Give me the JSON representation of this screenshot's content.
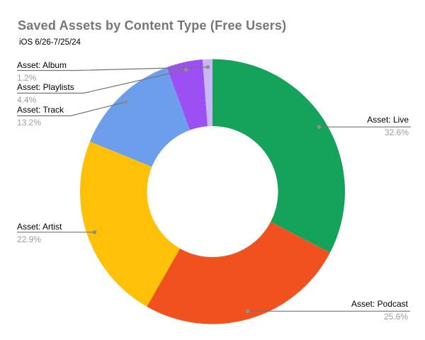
{
  "header": {
    "title": "Saved Assets by Content Type (Free Users)",
    "subtitle": "iOS 6/26-7/25/24"
  },
  "chart_data": {
    "type": "pie",
    "variant": "donut",
    "title": "Saved Assets by Content Type (Free Users)",
    "subtitle": "iOS 6/26-7/25/24",
    "order": "clockwise from 12 o'clock",
    "legend_position": "callout-labels",
    "total_pct": 99.9,
    "categories": [
      "Asset: Live",
      "Asset: Podcast",
      "Asset: Artist",
      "Asset: Track",
      "Asset: Playlists",
      "Asset: Album"
    ],
    "values": [
      32.6,
      25.6,
      22.9,
      13.2,
      4.4,
      1.2
    ],
    "slices": [
      {
        "label": "Asset: Live",
        "value_pct": 32.6,
        "pct_label": "32.6%",
        "color": "#15A35C"
      },
      {
        "label": "Asset: Podcast",
        "value_pct": 25.6,
        "pct_label": "25.6%",
        "color": "#F0511E"
      },
      {
        "label": "Asset: Artist",
        "value_pct": 22.9,
        "pct_label": "22.9%",
        "color": "#FFC107"
      },
      {
        "label": "Asset: Track",
        "value_pct": 13.2,
        "pct_label": "13.2%",
        "color": "#6D9EEB"
      },
      {
        "label": "Asset: Playlists",
        "value_pct": 4.4,
        "pct_label": "4.4%",
        "color": "#9C4FF2"
      },
      {
        "label": "Asset: Album",
        "value_pct": 1.2,
        "pct_label": "1.2%",
        "color": "#CAB6F9"
      }
    ],
    "style_colors": {
      "background": "#FFFFFF",
      "title_text": "#757575",
      "subtitle_text": "#000000",
      "label_text": "#000000",
      "pct_text": "#9E9E9E",
      "leader_line": "#757575",
      "leader_dot": "#8F8F8F"
    }
  }
}
